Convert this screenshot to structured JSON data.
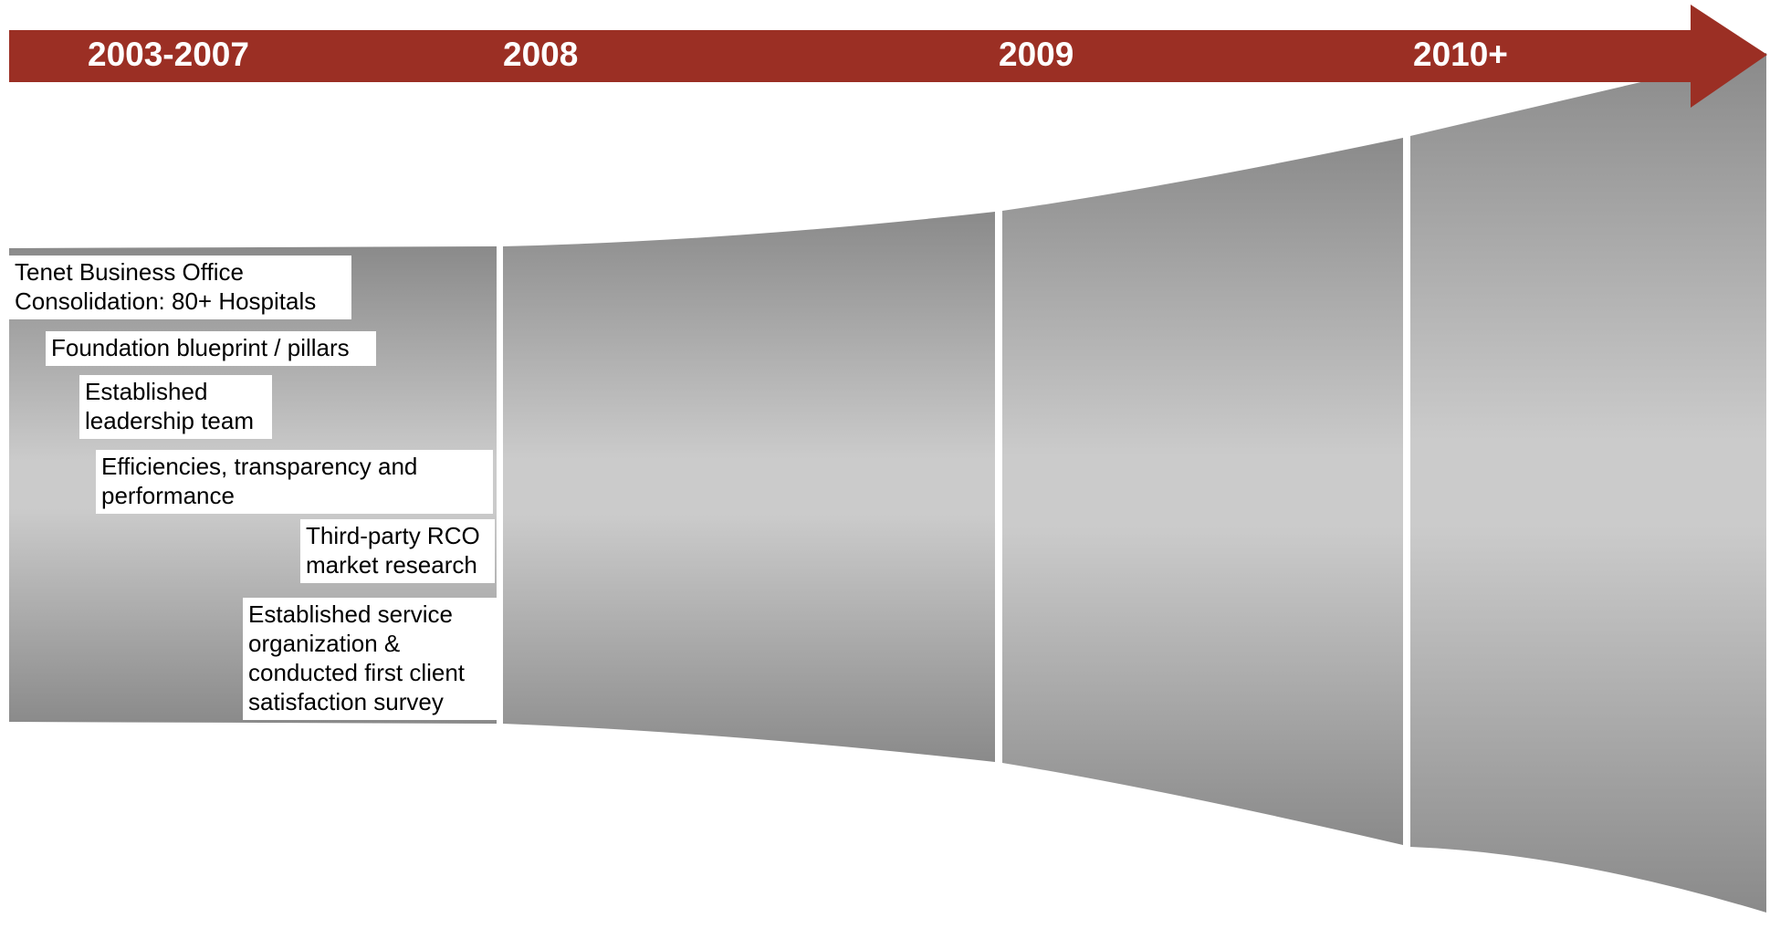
{
  "timeline": {
    "arrow_color": "#9b2f24",
    "periods": [
      {
        "label": "2003-2007"
      },
      {
        "label": "2008"
      },
      {
        "label": "2009"
      },
      {
        "label": "2010+"
      }
    ]
  },
  "milestones": [
    {
      "lines": [
        "Tenet Business Office",
        "Consolidation: 80+ Hospitals"
      ]
    },
    {
      "lines": [
        "Foundation blueprint / pillars"
      ]
    },
    {
      "lines": [
        "Established",
        "leadership team"
      ]
    },
    {
      "lines": [
        "Efficiencies, transparency and",
        "performance"
      ]
    },
    {
      "lines": [
        "Third-party RCO",
        "market research"
      ]
    },
    {
      "lines": [
        "Established service",
        "organization &",
        "conducted first client",
        "satisfaction survey"
      ]
    }
  ]
}
